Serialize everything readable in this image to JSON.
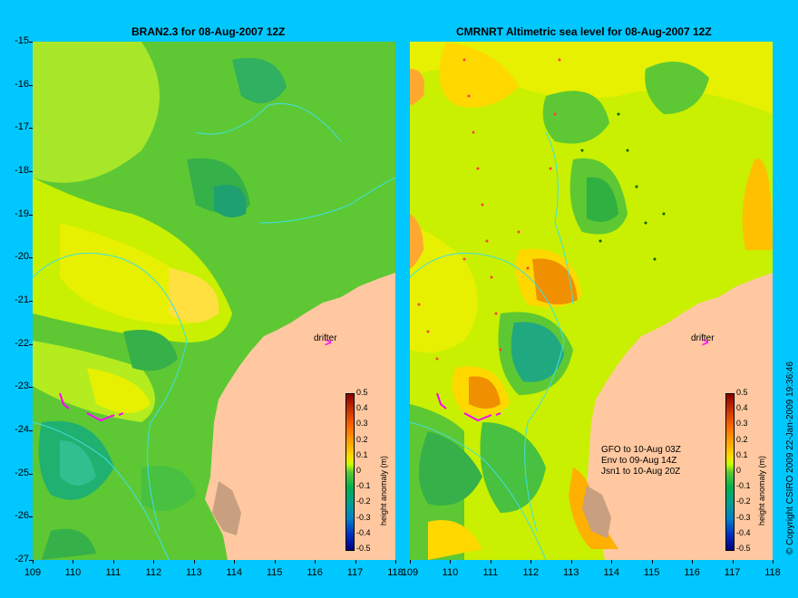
{
  "left_panel": {
    "title": "BRAN2.3 for 08-Aug-2007 12Z",
    "drifter_label": "drifter",
    "colorbar_label": "height anomaly (m)"
  },
  "right_panel": {
    "title": "CMRNRT Altimetric sea level  for 08-Aug-2007 12Z",
    "drifter_label": "drifter",
    "colorbar_label": "height anomaly (m)",
    "satellites": [
      "GFO to 10-Aug 03Z",
      "Env to 09-Aug 14Z",
      "Jsn1 to 10-Aug 20Z"
    ]
  },
  "axes": {
    "y_ticks": [
      "-15",
      "-16",
      "-17",
      "-18",
      "-19",
      "-20",
      "-21",
      "-22",
      "-23",
      "-24",
      "-25",
      "-26",
      "-27"
    ],
    "x_ticks": [
      "109",
      "110",
      "111",
      "112",
      "113",
      "114",
      "115",
      "116",
      "117",
      "118"
    ]
  },
  "colorbar_ticks": [
    "0.5",
    "0.4",
    "0.3",
    "0.2",
    "0.1",
    "0",
    "-0.1",
    "-0.2",
    "-0.3",
    "-0.4",
    "-0.5"
  ],
  "copyright": "© Copyright CSIRO 2009   22-Jan-2009 19:36:46",
  "colors": {
    "background": "#00c8ff",
    "land": "#ffc8a0",
    "drifter": "#ff00ff",
    "coast_contour": "#40e0e0"
  }
}
